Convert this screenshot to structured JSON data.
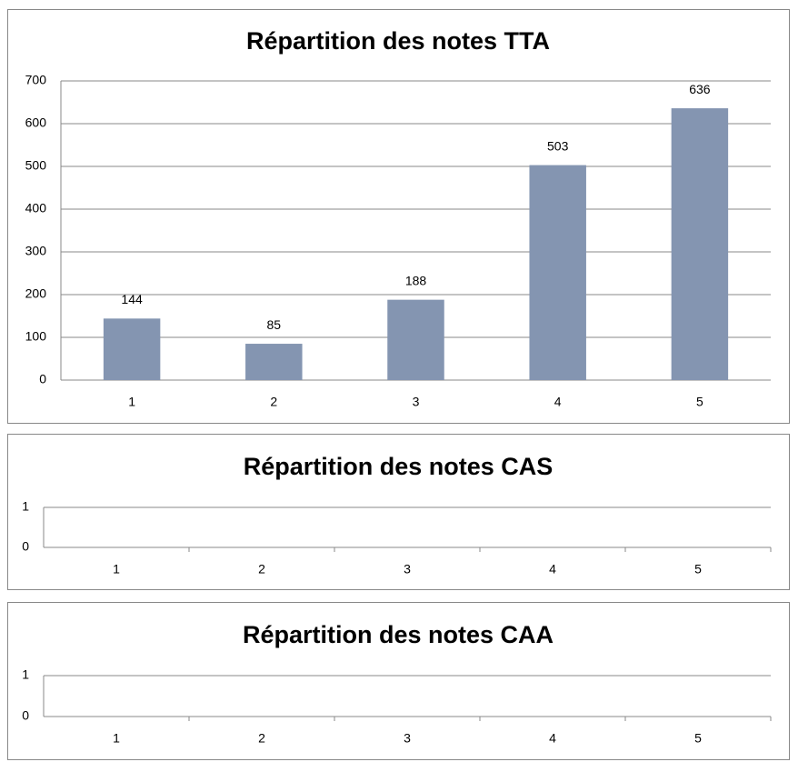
{
  "chart_data": [
    {
      "type": "bar",
      "title": "Répartition des notes TTA",
      "categories": [
        "1",
        "2",
        "3",
        "4",
        "5"
      ],
      "values": [
        144,
        85,
        188,
        503,
        636
      ],
      "color": "#8495b1",
      "ylim": [
        0,
        700
      ],
      "yticks": [
        0,
        100,
        200,
        300,
        400,
        500,
        600,
        700
      ],
      "grid": true,
      "data_labels": true
    },
    {
      "type": "bar",
      "title": "Répartition des notes CAS",
      "categories": [
        "1",
        "2",
        "3",
        "4",
        "5"
      ],
      "ylim": [
        0,
        1
      ],
      "yticks": [
        0,
        1
      ],
      "grid": true
    },
    {
      "type": "bar",
      "title": "Répartition des notes CAA",
      "categories": [
        "1",
        "2",
        "3",
        "4",
        "5"
      ],
      "ylim": [
        0,
        1
      ],
      "yticks": [
        0,
        1
      ],
      "grid": true
    }
  ]
}
